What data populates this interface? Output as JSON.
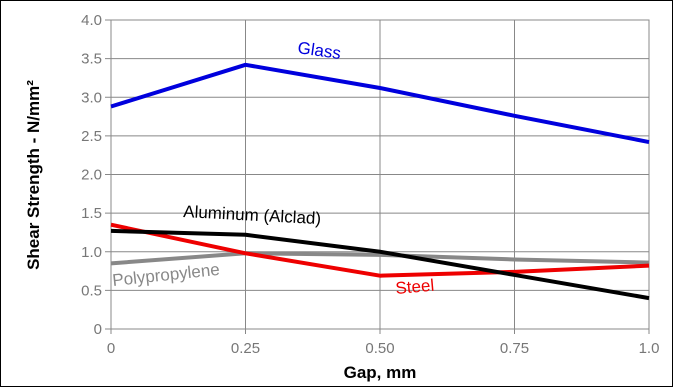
{
  "chart_data": {
    "type": "line",
    "xlabel": "Gap, mm",
    "ylabel": "Shear Strength - N/mm²",
    "x": [
      0,
      0.25,
      0.5,
      0.75,
      1.0
    ],
    "xticks": [
      "0",
      "0.25",
      "0.50",
      "0.75",
      "1.0"
    ],
    "yticks": [
      "0",
      "0.5",
      "1.0",
      "1.5",
      "2.0",
      "2.5",
      "3.0",
      "3.5",
      "4.0"
    ],
    "xlim": [
      0,
      1.0
    ],
    "ylim": [
      0,
      4.0
    ],
    "grid": true,
    "series": [
      {
        "name": "Glass",
        "color": "#0000dd",
        "values": [
          2.88,
          3.42,
          3.12,
          2.76,
          2.42
        ]
      },
      {
        "name": "Aluminum (Alclad)",
        "color": "#000000",
        "values": [
          1.27,
          1.22,
          1.0,
          0.7,
          0.4
        ]
      },
      {
        "name": "Steel",
        "color": "#ee0000",
        "values": [
          1.35,
          0.98,
          0.69,
          0.74,
          0.82
        ]
      },
      {
        "name": "Polypropylene",
        "color": "#888888",
        "values": [
          0.85,
          0.98,
          0.96,
          0.9,
          0.86
        ]
      }
    ]
  }
}
